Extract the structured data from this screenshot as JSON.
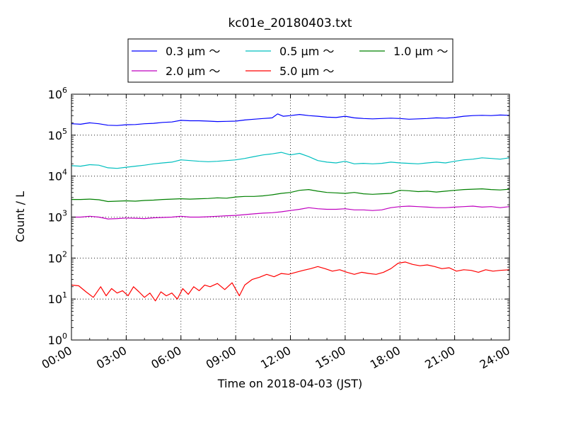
{
  "chart_data": {
    "type": "line",
    "title": "kc01e_20180403.txt",
    "xlabel": "Time on 2018-04-03 (JST)",
    "ylabel": "Count / L",
    "yscale": "log",
    "ylim": [
      1,
      1000000
    ],
    "xlim_hours": [
      0,
      24
    ],
    "grid": true,
    "legend_position": "top-center, outside plot",
    "x_ticks": [
      {
        "hour": 0,
        "label": "00:00"
      },
      {
        "hour": 3,
        "label": "03:00"
      },
      {
        "hour": 6,
        "label": "06:00"
      },
      {
        "hour": 9,
        "label": "09:00"
      },
      {
        "hour": 12,
        "label": "12:00"
      },
      {
        "hour": 15,
        "label": "15:00"
      },
      {
        "hour": 18,
        "label": "18:00"
      },
      {
        "hour": 21,
        "label": "21:00"
      },
      {
        "hour": 24,
        "label": "24:00"
      }
    ],
    "y_ticks": [
      {
        "exp": 0,
        "base": "10",
        "sup": "0"
      },
      {
        "exp": 1,
        "base": "10",
        "sup": "1"
      },
      {
        "exp": 2,
        "base": "10",
        "sup": "2"
      },
      {
        "exp": 3,
        "base": "10",
        "sup": "3"
      },
      {
        "exp": 4,
        "base": "10",
        "sup": "4"
      },
      {
        "exp": 5,
        "base": "10",
        "sup": "5"
      },
      {
        "exp": 6,
        "base": "10",
        "sup": "6"
      }
    ],
    "series": [
      {
        "name": "0.3 μm ～",
        "color": "#0000ff",
        "x": [
          0,
          0.5,
          1,
          1.5,
          2,
          2.5,
          3,
          3.5,
          4,
          4.5,
          5,
          5.5,
          6,
          6.5,
          7,
          7.5,
          8,
          8.5,
          9,
          9.5,
          10,
          10.5,
          11,
          11.3,
          11.6,
          12,
          12.5,
          13,
          13.5,
          14,
          14.5,
          15,
          15.5,
          16,
          16.5,
          17,
          17.5,
          18,
          18.5,
          19,
          19.5,
          20,
          20.5,
          21,
          21.5,
          22,
          22.5,
          23,
          23.5,
          24
        ],
        "y": [
          190000,
          185000,
          200000,
          190000,
          175000,
          172000,
          180000,
          182000,
          190000,
          195000,
          205000,
          210000,
          230000,
          225000,
          225000,
          220000,
          215000,
          218000,
          220000,
          235000,
          245000,
          255000,
          265000,
          330000,
          290000,
          300000,
          320000,
          300000,
          290000,
          275000,
          270000,
          290000,
          265000,
          255000,
          250000,
          255000,
          260000,
          255000,
          245000,
          250000,
          255000,
          265000,
          260000,
          270000,
          290000,
          300000,
          305000,
          300000,
          310000,
          305000
        ]
      },
      {
        "name": "0.5 μm ～",
        "color": "#00bfbf",
        "x": [
          0,
          0.5,
          1,
          1.5,
          2,
          2.5,
          3,
          3.5,
          4,
          4.5,
          5,
          5.5,
          6,
          6.5,
          7,
          7.5,
          8,
          8.5,
          9,
          9.5,
          10,
          10.5,
          11,
          11.5,
          12,
          12.5,
          13,
          13.5,
          14,
          14.5,
          15,
          15.5,
          16,
          16.5,
          17,
          17.5,
          18,
          18.5,
          19,
          19.5,
          20,
          20.5,
          21,
          21.5,
          22,
          22.5,
          23,
          23.5,
          24
        ],
        "y": [
          18000,
          17500,
          19000,
          18500,
          16000,
          15500,
          16500,
          17500,
          18500,
          20000,
          21000,
          22000,
          25000,
          24000,
          23000,
          22500,
          23000,
          24000,
          25000,
          27000,
          30000,
          33000,
          35000,
          38000,
          33000,
          36000,
          30000,
          24000,
          22000,
          21000,
          23000,
          20000,
          20500,
          20000,
          20500,
          22000,
          21000,
          20500,
          20000,
          21000,
          22000,
          21000,
          23000,
          25000,
          26000,
          28000,
          27000,
          26000,
          28000
        ]
      },
      {
        "name": "1.0 μm ～",
        "color": "#008000",
        "x": [
          0,
          0.5,
          1,
          1.5,
          2,
          2.5,
          3,
          3.5,
          4,
          4.5,
          5,
          5.5,
          6,
          6.5,
          7,
          7.5,
          8,
          8.5,
          9,
          9.5,
          10,
          10.5,
          11,
          11.5,
          12,
          12.5,
          13,
          13.5,
          14,
          14.5,
          15,
          15.5,
          16,
          16.5,
          17,
          17.5,
          18,
          18.5,
          19,
          19.5,
          20,
          20.5,
          21,
          21.5,
          22,
          22.5,
          23,
          23.5,
          24
        ],
        "y": [
          2700,
          2700,
          2750,
          2650,
          2400,
          2450,
          2500,
          2450,
          2550,
          2600,
          2700,
          2750,
          2800,
          2750,
          2800,
          2850,
          2950,
          2900,
          3100,
          3200,
          3200,
          3300,
          3500,
          3800,
          4000,
          4500,
          4700,
          4300,
          4000,
          3900,
          3800,
          4000,
          3700,
          3600,
          3700,
          3800,
          4500,
          4400,
          4200,
          4300,
          4100,
          4300,
          4500,
          4700,
          4800,
          4900,
          4700,
          4600,
          4800
        ]
      },
      {
        "name": "2.0 μm ～",
        "color": "#bf00bf",
        "x": [
          0,
          0.5,
          1,
          1.5,
          2,
          2.5,
          3,
          3.5,
          4,
          4.5,
          5,
          5.5,
          6,
          6.5,
          7,
          7.5,
          8,
          8.5,
          9,
          9.5,
          10,
          10.5,
          11,
          11.5,
          12,
          12.5,
          13,
          13.5,
          14,
          14.5,
          15,
          15.5,
          16,
          16.5,
          17,
          17.5,
          18,
          18.5,
          19,
          19.5,
          20,
          20.5,
          21,
          21.5,
          22,
          22.5,
          23,
          23.5,
          24
        ],
        "y": [
          1000,
          1000,
          1050,
          1000,
          900,
          920,
          950,
          940,
          920,
          960,
          980,
          1000,
          1050,
          1000,
          1000,
          1020,
          1050,
          1080,
          1100,
          1150,
          1200,
          1250,
          1280,
          1350,
          1450,
          1550,
          1700,
          1600,
          1550,
          1550,
          1600,
          1500,
          1500,
          1450,
          1500,
          1700,
          1800,
          1850,
          1800,
          1750,
          1700,
          1700,
          1750,
          1800,
          1850,
          1750,
          1800,
          1700,
          1800
        ]
      },
      {
        "name": "5.0 μm ～",
        "color": "#ff0000",
        "x": [
          0,
          0.4,
          0.8,
          1.2,
          1.6,
          1.9,
          2.2,
          2.5,
          2.8,
          3.1,
          3.4,
          3.7,
          4.0,
          4.3,
          4.6,
          4.9,
          5.2,
          5.5,
          5.8,
          6.1,
          6.4,
          6.7,
          7.0,
          7.3,
          7.6,
          8.0,
          8.4,
          8.8,
          9.2,
          9.5,
          9.9,
          10.3,
          10.7,
          11.1,
          11.5,
          11.9,
          12.3,
          12.7,
          13.1,
          13.5,
          13.9,
          14.3,
          14.7,
          15.1,
          15.5,
          15.9,
          16.3,
          16.7,
          17.1,
          17.5,
          17.9,
          18.3,
          18.7,
          19.1,
          19.5,
          19.9,
          20.3,
          20.7,
          21.1,
          21.5,
          21.9,
          22.3,
          22.7,
          23.1,
          23.5,
          24
        ],
        "y": [
          22,
          21,
          15,
          11,
          20,
          12,
          18,
          14,
          16,
          12,
          20,
          15,
          11,
          14,
          9,
          15,
          12,
          14,
          10,
          18,
          13,
          20,
          16,
          22,
          20,
          24,
          17,
          25,
          12,
          22,
          30,
          34,
          40,
          35,
          42,
          40,
          45,
          50,
          55,
          62,
          55,
          48,
          52,
          45,
          40,
          45,
          42,
          40,
          45,
          55,
          75,
          80,
          70,
          65,
          68,
          62,
          55,
          58,
          48,
          52,
          50,
          45,
          52,
          48,
          50,
          52
        ]
      }
    ]
  }
}
